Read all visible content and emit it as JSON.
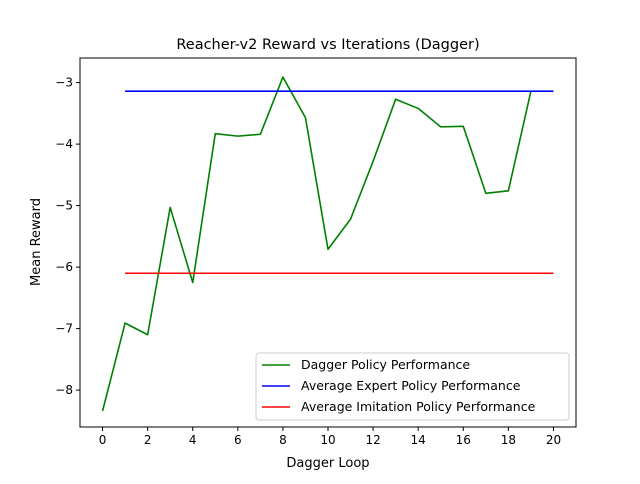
{
  "chart_data": {
    "type": "line",
    "title": "Reacher-v2 Reward vs Iterations (Dagger)",
    "xlabel": "Dagger Loop",
    "ylabel": "Mean Reward",
    "xlim": [
      -1,
      21
    ],
    "ylim": [
      -8.6,
      -2.6
    ],
    "xticks": [
      0,
      2,
      4,
      6,
      8,
      10,
      12,
      14,
      16,
      18,
      20
    ],
    "yticks": [
      -8,
      -7,
      -6,
      -5,
      -4,
      -3
    ],
    "ytick_labels": [
      "−8",
      "−7",
      "−6",
      "−5",
      "−4",
      "−3"
    ],
    "legend_position": "lower-right",
    "grid": false,
    "series": [
      {
        "name": "Dagger Policy Performance",
        "color": "#008000",
        "x": [
          0,
          1,
          2,
          3,
          4,
          5,
          6,
          7,
          8,
          9,
          10,
          11,
          12,
          13,
          14,
          15,
          16,
          17,
          18,
          19
        ],
        "y": [
          -8.34,
          -6.91,
          -7.1,
          -5.03,
          -6.25,
          -3.83,
          -3.87,
          -3.84,
          -2.91,
          -3.57,
          -5.71,
          -5.22,
          -4.28,
          -3.27,
          -3.42,
          -3.72,
          -3.71,
          -4.8,
          -4.76,
          -3.14
        ]
      },
      {
        "name": "Average Expert Policy Performance",
        "color": "#0000ff",
        "x": [
          1,
          20
        ],
        "y": [
          -3.14,
          -3.14
        ]
      },
      {
        "name": "Average Imitation Policy Performance",
        "color": "#ff0000",
        "x": [
          1,
          20
        ],
        "y": [
          -6.1,
          -6.1
        ]
      }
    ]
  }
}
